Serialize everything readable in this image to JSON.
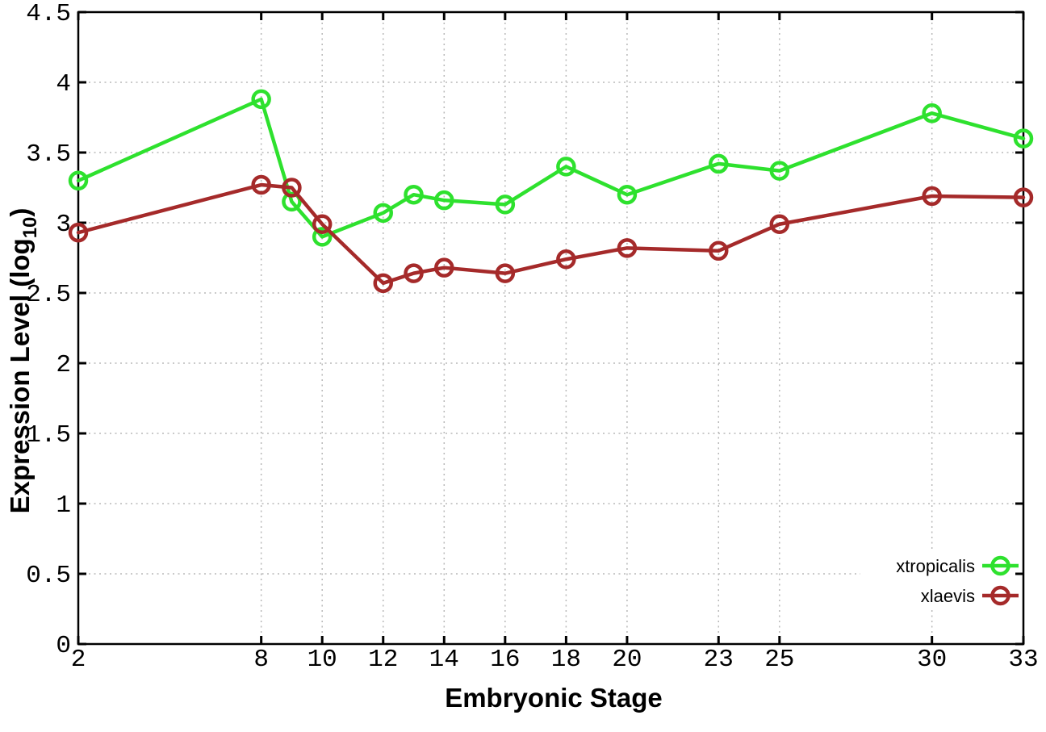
{
  "chart_data": {
    "type": "line",
    "title": "",
    "xlabel": "Embryonic Stage",
    "ylabel": {
      "text": "Expression Level (log",
      "sub": "10",
      "suffix": ")"
    },
    "x": [
      2,
      8,
      9,
      10,
      12,
      13,
      14,
      16,
      18,
      20,
      23,
      25,
      30,
      33
    ],
    "xlim": [
      2,
      33
    ],
    "ylim": [
      0,
      4.5
    ],
    "x_ticks": [
      2,
      8,
      10,
      12,
      14,
      16,
      18,
      20,
      23,
      25,
      30,
      33
    ],
    "x_tick_labels": [
      "2",
      "8",
      "10",
      "12",
      "14",
      "16",
      "18",
      "20",
      "23",
      "25",
      "30",
      "33"
    ],
    "y_ticks": [
      0,
      0.5,
      1,
      1.5,
      2,
      2.5,
      3,
      3.5,
      4,
      4.5
    ],
    "y_tick_labels": [
      "0",
      "0.5",
      "1",
      "1.5",
      "2",
      "2.5",
      "3",
      "3.5",
      "4",
      "4.5"
    ],
    "grid": true,
    "grid_style": "dotted",
    "legend_position": "bottom-right",
    "series": [
      {
        "name": "xtropicalis",
        "color": "#2ee12e",
        "marker": "open-circle",
        "values": [
          3.3,
          3.88,
          3.15,
          2.9,
          3.07,
          3.2,
          3.16,
          3.13,
          3.4,
          3.2,
          3.42,
          3.37,
          3.78,
          3.6
        ]
      },
      {
        "name": "xlaevis",
        "color": "#a52a2a",
        "marker": "open-circle",
        "values": [
          2.93,
          3.27,
          3.25,
          2.99,
          2.57,
          2.64,
          2.68,
          2.64,
          2.74,
          2.82,
          2.8,
          2.99,
          3.19,
          3.18
        ]
      }
    ]
  },
  "styles": {
    "background": "#ffffff",
    "border_color": "#000000",
    "grid_color": "#b8b8b8",
    "tick_color": "#000000"
  }
}
